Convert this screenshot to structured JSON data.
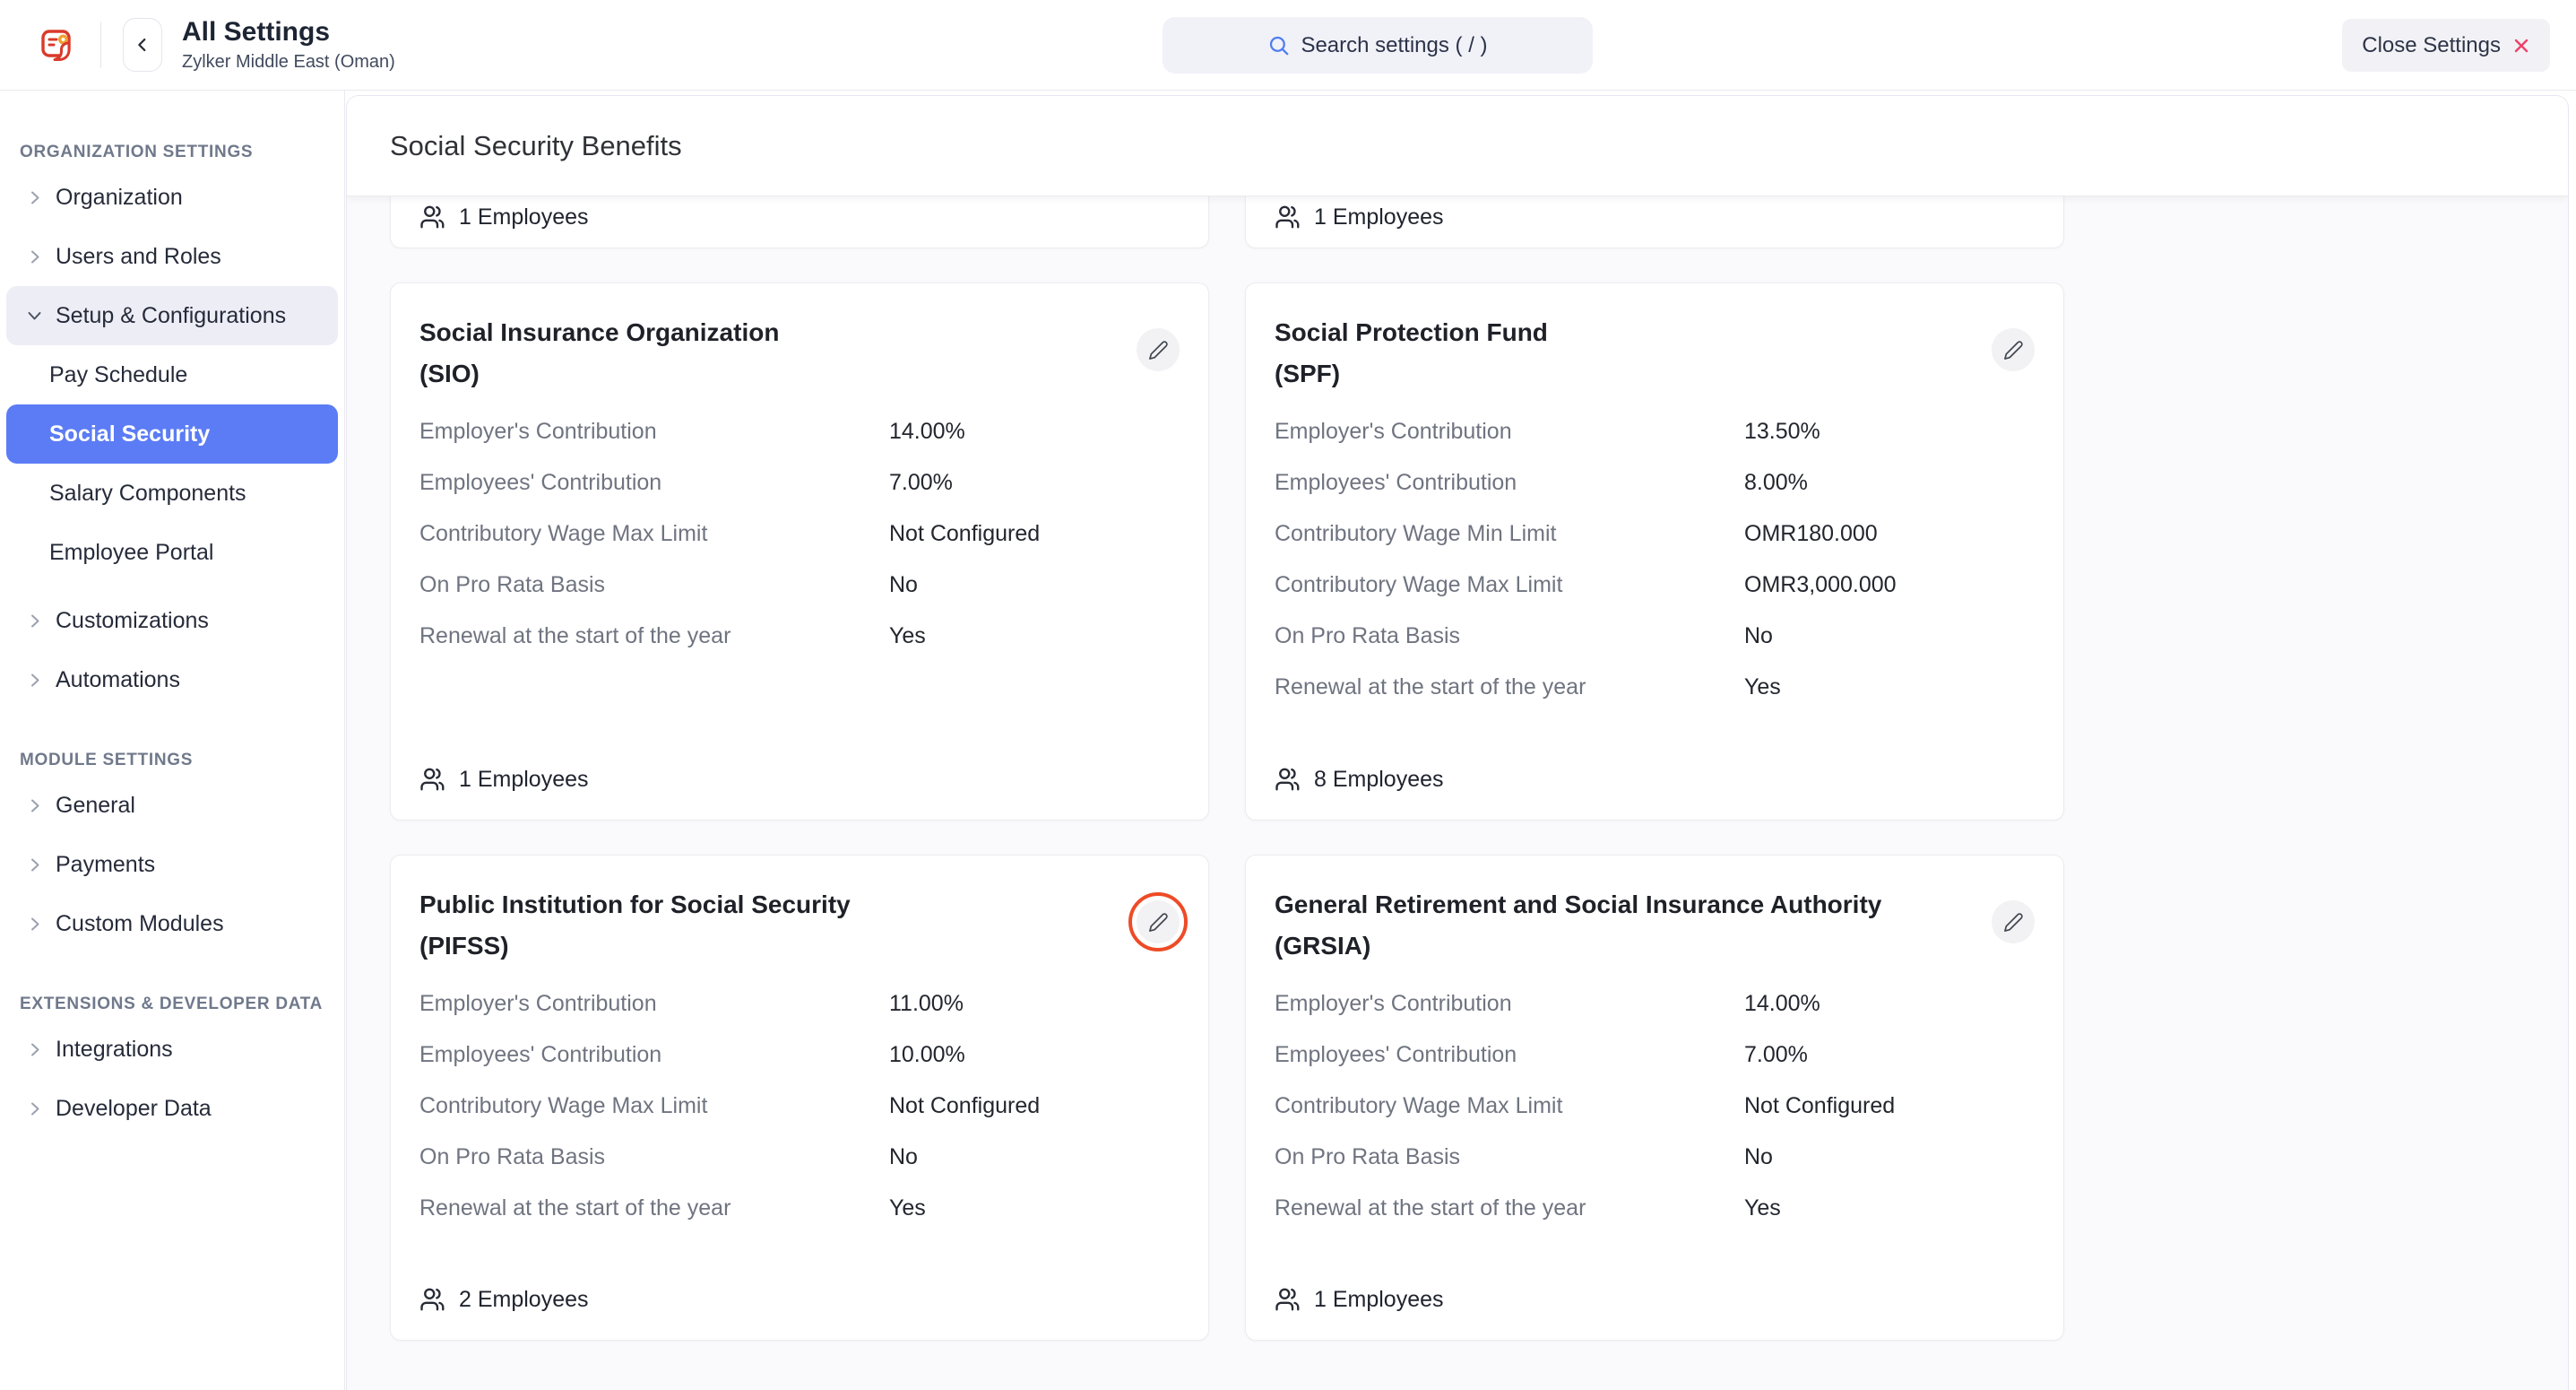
{
  "header": {
    "title": "All Settings",
    "subtitle": "Zylker Middle East (Oman)",
    "search_placeholder": "Search settings ( / )",
    "close_label": "Close Settings"
  },
  "sidebar": {
    "sections": [
      {
        "heading": "ORGANIZATION SETTINGS",
        "items": [
          {
            "label": "Organization"
          },
          {
            "label": "Users and Roles"
          },
          {
            "label": "Setup & Configurations",
            "expanded": true,
            "children": [
              {
                "label": "Pay Schedule"
              },
              {
                "label": "Social Security",
                "active": true
              },
              {
                "label": "Salary Components"
              },
              {
                "label": "Employee Portal"
              }
            ]
          },
          {
            "label": "Customizations"
          },
          {
            "label": "Automations"
          }
        ]
      },
      {
        "heading": "MODULE SETTINGS",
        "items": [
          {
            "label": "General"
          },
          {
            "label": "Payments"
          },
          {
            "label": "Custom Modules"
          }
        ]
      },
      {
        "heading": "EXTENSIONS & DEVELOPER DATA",
        "items": [
          {
            "label": "Integrations"
          },
          {
            "label": "Developer Data"
          }
        ]
      }
    ]
  },
  "main": {
    "page_title": "Social Security Benefits",
    "partial_cards": [
      {
        "employees": "1 Employees"
      },
      {
        "employees": "1 Employees"
      }
    ],
    "cards": [
      {
        "title": "Social Insurance Organization",
        "abbr": "(SIO)",
        "rows": [
          {
            "label": "Employer's Contribution",
            "value": "14.00%"
          },
          {
            "label": "Employees' Contribution",
            "value": "7.00%"
          },
          {
            "label": "Contributory Wage Max Limit",
            "value": "Not Configured"
          },
          {
            "label": "On Pro Rata Basis",
            "value": "No"
          },
          {
            "label": "Renewal at the start of the year",
            "value": "Yes"
          }
        ],
        "employees": "1 Employees",
        "edit_highlighted": false
      },
      {
        "title": "Social Protection Fund",
        "abbr": "(SPF)",
        "rows": [
          {
            "label": "Employer's Contribution",
            "value": "13.50%"
          },
          {
            "label": "Employees' Contribution",
            "value": "8.00%"
          },
          {
            "label": "Contributory Wage Min Limit",
            "value": "OMR180.000"
          },
          {
            "label": "Contributory Wage Max Limit",
            "value": "OMR3,000.000"
          },
          {
            "label": "On Pro Rata Basis",
            "value": "No"
          },
          {
            "label": "Renewal at the start of the year",
            "value": "Yes"
          }
        ],
        "employees": "8 Employees",
        "edit_highlighted": false
      },
      {
        "title": "Public Institution for Social Security",
        "abbr": "(PIFSS)",
        "rows": [
          {
            "label": "Employer's Contribution",
            "value": "11.00%"
          },
          {
            "label": "Employees' Contribution",
            "value": "10.00%"
          },
          {
            "label": "Contributory Wage Max Limit",
            "value": "Not Configured"
          },
          {
            "label": "On Pro Rata Basis",
            "value": "No"
          },
          {
            "label": "Renewal at the start of the year",
            "value": "Yes"
          }
        ],
        "employees": "2 Employees",
        "edit_highlighted": true
      },
      {
        "title": "General Retirement and Social Insurance Authority",
        "abbr": "(GRSIA)",
        "rows": [
          {
            "label": "Employer's Contribution",
            "value": "14.00%"
          },
          {
            "label": "Employees' Contribution",
            "value": "7.00%"
          },
          {
            "label": "Contributory Wage Max Limit",
            "value": "Not Configured"
          },
          {
            "label": "On Pro Rata Basis",
            "value": "No"
          },
          {
            "label": "Renewal at the start of the year",
            "value": "Yes"
          }
        ],
        "employees": "1 Employees",
        "edit_highlighted": false
      }
    ]
  },
  "colors": {
    "accent_blue": "#5B7CF4",
    "annotation_red": "#EE4B27",
    "close_x_pink": "#EF4167",
    "search_icon_blue": "#4F7DF3",
    "logo_red": "#D93A2B",
    "logo_orange": "#F0A12E"
  }
}
